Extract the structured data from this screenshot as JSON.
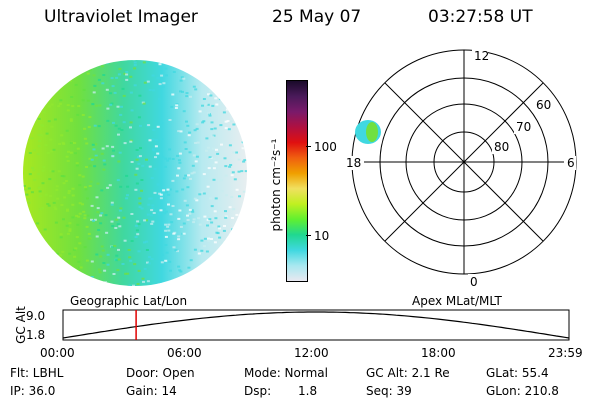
{
  "header": {
    "title": "Ultraviolet Imager",
    "date": "25 May 07",
    "time": "03:27:58 UT"
  },
  "colorbar": {
    "unit_label": "photon cm⁻²s⁻¹",
    "ticks": [
      "100",
      "10"
    ],
    "scale": "log",
    "colors": [
      "#1a0a2a",
      "#4a1a5a",
      "#7a1a6a",
      "#b01040",
      "#e01010",
      "#f06010",
      "#f0a000",
      "#f0e060",
      "#c0f020",
      "#60f030",
      "#20d890",
      "#40d8e0",
      "#a8e8f0",
      "#e8e8f0"
    ]
  },
  "polar_plot": {
    "mlt_labels": [
      "12",
      "18",
      "6",
      "0"
    ],
    "lat_labels": [
      "60",
      "70",
      "80"
    ]
  },
  "timeline": {
    "left_label": "Geographic Lat/Lon",
    "right_label": "Apex MLat/MLT",
    "y_axis_label": "GC Alt",
    "y_ticks": [
      "9.0",
      "1.8"
    ],
    "x_ticks": [
      "00:00",
      "06:00",
      "12:00",
      "18:00",
      "23:59"
    ],
    "marker_time": "03:27:58"
  },
  "status": {
    "flt": "Flt: LBHL",
    "ip": "IP: 36.0",
    "door": "Door: Open",
    "gain": "Gain: 14",
    "mode": "Mode: Normal",
    "dsp": "Dsp:",
    "dsp_value": "1.8",
    "gc_alt": "GC Alt: 2.1 Re",
    "seq": "Seq: 39",
    "glat": "GLat: 55.4",
    "glon": "GLon: 210.8"
  }
}
